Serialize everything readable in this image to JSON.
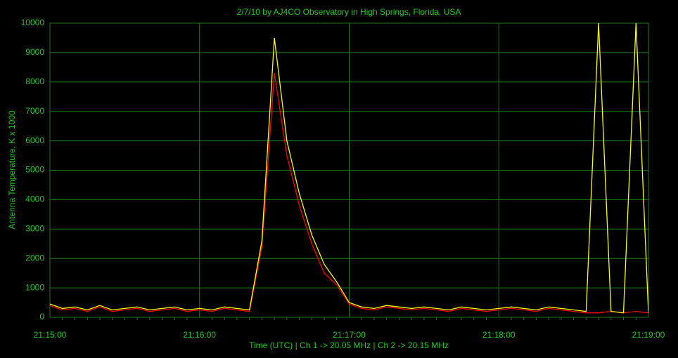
{
  "chart_data": {
    "type": "line",
    "title": "2/7/10  by  AJ4CO Observatory  in  High Springs, Florida, USA",
    "x_label": "Time (UTC)  |  Ch 1 -> 20.05 MHz  |  Ch 2 -> 20.15 MHz",
    "y_label": "Antenna Temperature, K x 1000",
    "categories": [
      "21:15:00",
      null,
      null,
      null,
      null,
      null,
      null,
      null,
      null,
      null,
      null,
      null,
      "21:16:00",
      null,
      null,
      null,
      null,
      null,
      null,
      null,
      null,
      null,
      null,
      null,
      "21:17:00",
      null,
      null,
      null,
      null,
      null,
      null,
      null,
      null,
      null,
      null,
      null,
      "21:18:00",
      null,
      null,
      null,
      null,
      null,
      null,
      null,
      null,
      null,
      null,
      null,
      "21:19:00"
    ],
    "series": [
      {
        "name": "Ch 1",
        "color": "#ff0000",
        "values": [
          400,
          250,
          300,
          200,
          350,
          200,
          250,
          300,
          200,
          250,
          300,
          200,
          250,
          200,
          300,
          250,
          200,
          2400,
          8300,
          5500,
          3800,
          2500,
          1500,
          1100,
          450,
          300,
          250,
          350,
          300,
          250,
          300,
          250,
          200,
          300,
          250,
          200,
          250,
          300,
          250,
          200,
          300,
          250,
          200,
          150,
          150,
          200,
          150,
          200,
          150
        ]
      },
      {
        "name": "Ch 2",
        "color": "#ffff00",
        "values": [
          450,
          300,
          350,
          250,
          400,
          250,
          300,
          350,
          250,
          300,
          350,
          250,
          300,
          250,
          350,
          300,
          250,
          2600,
          9500,
          6000,
          4200,
          2800,
          1800,
          1200,
          500,
          350,
          300,
          400,
          350,
          300,
          350,
          300,
          250,
          350,
          300,
          250,
          300,
          350,
          300,
          250,
          350,
          300,
          250,
          200,
          10000,
          200,
          150,
          10000,
          150
        ]
      }
    ],
    "ylim": [
      0,
      10000
    ],
    "yticks": [
      0,
      1000,
      2000,
      3000,
      4000,
      5000,
      6000,
      7000,
      8000,
      9000,
      10000
    ],
    "grid": true
  }
}
